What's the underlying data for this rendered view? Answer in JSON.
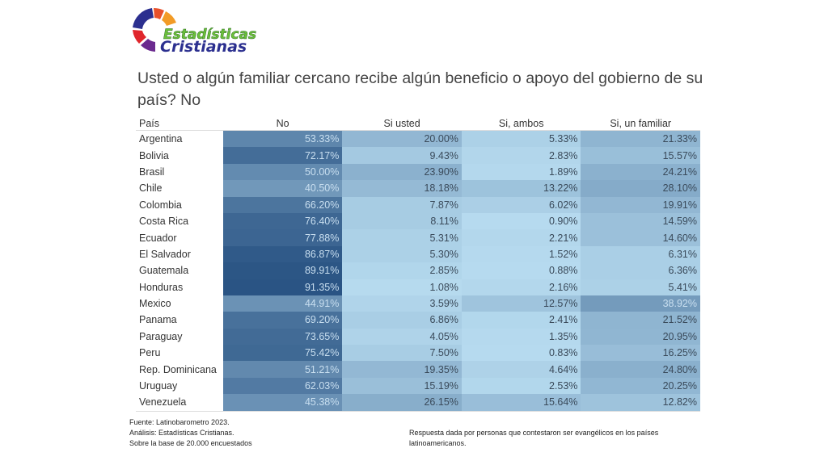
{
  "logo": {
    "line1": "Estadísticas",
    "line2": "Cristianas"
  },
  "title": "Usted o algún familiar cercano recibe algún beneficio o apoyo del gobierno de su país?   No",
  "chart_data": {
    "type": "heatmap",
    "title": "Usted o algún familiar cercano recibe algún beneficio o apoyo del gobierno de su país?   No",
    "row_header": "País",
    "columns": [
      "No",
      "Si usted",
      "Si, ambos",
      "Si, un familiar"
    ],
    "rows": [
      {
        "country": "Argentina",
        "values": [
          "53.33%",
          "20.00%",
          "5.33%",
          "21.33%"
        ]
      },
      {
        "country": "Bolivia",
        "values": [
          "72.17%",
          "9.43%",
          "2.83%",
          "15.57%"
        ]
      },
      {
        "country": "Brasil",
        "values": [
          "50.00%",
          "23.90%",
          "1.89%",
          "24.21%"
        ]
      },
      {
        "country": "Chile",
        "values": [
          "40.50%",
          "18.18%",
          "13.22%",
          "28.10%"
        ]
      },
      {
        "country": "Colombia",
        "values": [
          "66.20%",
          "7.87%",
          "6.02%",
          "19.91%"
        ]
      },
      {
        "country": "Costa Rica",
        "values": [
          "76.40%",
          "8.11%",
          "0.90%",
          "14.59%"
        ]
      },
      {
        "country": "Ecuador",
        "values": [
          "77.88%",
          "5.31%",
          "2.21%",
          "14.60%"
        ]
      },
      {
        "country": "El Salvador",
        "values": [
          "86.87%",
          "5.30%",
          "1.52%",
          "6.31%"
        ]
      },
      {
        "country": "Guatemala",
        "values": [
          "89.91%",
          "2.85%",
          "0.88%",
          "6.36%"
        ]
      },
      {
        "country": "Honduras",
        "values": [
          "91.35%",
          "1.08%",
          "2.16%",
          "5.41%"
        ]
      },
      {
        "country": "Mexico",
        "values": [
          "44.91%",
          "3.59%",
          "12.57%",
          "38.92%"
        ]
      },
      {
        "country": "Panama",
        "values": [
          "69.20%",
          "6.86%",
          "2.41%",
          "21.52%"
        ]
      },
      {
        "country": "Paraguay",
        "values": [
          "73.65%",
          "4.05%",
          "1.35%",
          "20.95%"
        ]
      },
      {
        "country": "Peru",
        "values": [
          "75.42%",
          "7.50%",
          "0.83%",
          "16.25%"
        ]
      },
      {
        "country": "Rep. Dominicana",
        "values": [
          "51.21%",
          "19.35%",
          "4.64%",
          "24.80%"
        ]
      },
      {
        "country": "Uruguay",
        "values": [
          "62.03%",
          "15.19%",
          "2.53%",
          "20.25%"
        ]
      },
      {
        "country": "Venezuela",
        "values": [
          "45.38%",
          "26.15%",
          "15.64%",
          "12.82%"
        ]
      }
    ],
    "color_scale": {
      "low": "#b9ddf1",
      "high": "#2a5484",
      "min": 0,
      "max": 91.35
    }
  },
  "footer": {
    "left": [
      "Fuente: Latinobarometro 2023.",
      "Análisis: Estadísticas Cristianas.",
      "Sobre la base de 20.000 encuestados"
    ],
    "right": "Respuesta dada por personas que contestaron ser evangélicos en los países latinoamericanos."
  }
}
